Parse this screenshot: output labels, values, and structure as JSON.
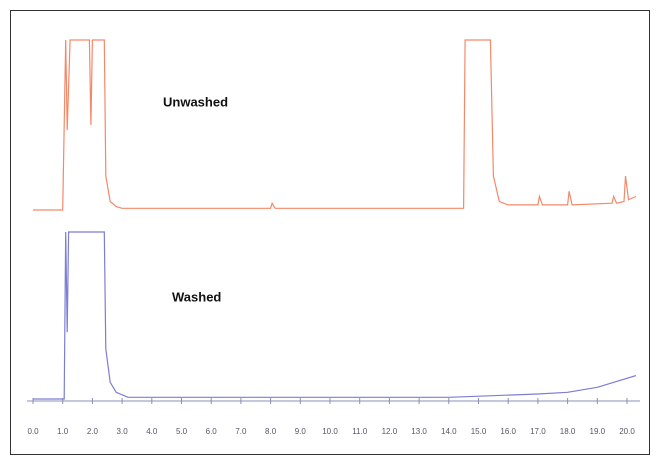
{
  "chart_data": {
    "type": "line",
    "series": [
      {
        "name": "Unwashed",
        "color": "#f2896a",
        "x": [
          0.0,
          1.0,
          1.1,
          1.15,
          1.25,
          1.9,
          1.95,
          2.0,
          2.4,
          2.45,
          2.6,
          2.8,
          3.0,
          8.0,
          8.05,
          8.15,
          14.5,
          14.55,
          15.4,
          15.5,
          15.7,
          16.0,
          17.0,
          17.05,
          17.15,
          18.0,
          18.05,
          18.15,
          19.5,
          19.55,
          19.65,
          19.9,
          19.95,
          20.05,
          20.3
        ],
        "values": [
          0,
          0,
          100,
          47,
          100,
          100,
          50,
          100,
          100,
          20,
          5,
          2,
          1,
          1,
          4,
          1,
          1,
          100,
          100,
          20,
          5,
          3,
          3,
          8,
          3,
          3,
          11,
          3,
          4,
          8,
          4,
          5,
          20,
          6,
          8
        ]
      },
      {
        "name": "Washed",
        "color": "#7c7ed2",
        "x": [
          0.0,
          1.05,
          1.1,
          1.15,
          1.2,
          2.4,
          2.45,
          2.6,
          2.8,
          3.2,
          14.0,
          17.0,
          18.0,
          19.0,
          20.3
        ],
        "values": [
          0,
          0,
          100,
          40,
          100,
          100,
          30,
          10,
          4,
          1,
          1,
          3,
          4,
          7,
          14
        ]
      }
    ],
    "xlim": [
      0,
      20
    ],
    "ylim": [
      0,
      100
    ],
    "xticks": [
      {
        "value": 0,
        "label": "0.0"
      },
      {
        "value": 1,
        "label": "1.0"
      },
      {
        "value": 2,
        "label": "2.0"
      },
      {
        "value": 3,
        "label": "3.0"
      },
      {
        "value": 4,
        "label": "4.0"
      },
      {
        "value": 5,
        "label": "5.0"
      },
      {
        "value": 6,
        "label": "6.0"
      },
      {
        "value": 7,
        "label": "7.0"
      },
      {
        "value": 8,
        "label": "8.0"
      },
      {
        "value": 9,
        "label": "9.0"
      },
      {
        "value": 10,
        "label": "10.0"
      },
      {
        "value": 11,
        "label": "11.0"
      },
      {
        "value": 12,
        "label": "12.0"
      },
      {
        "value": 13,
        "label": "13.0"
      },
      {
        "value": 14,
        "label": "14.0"
      },
      {
        "value": 15,
        "label": "15.0"
      },
      {
        "value": 16,
        "label": "16.0"
      },
      {
        "value": 17,
        "label": "17.0"
      },
      {
        "value": 18,
        "label": "18.0"
      },
      {
        "value": 19,
        "label": "19.0"
      },
      {
        "value": 20,
        "label": "20.0"
      }
    ]
  }
}
